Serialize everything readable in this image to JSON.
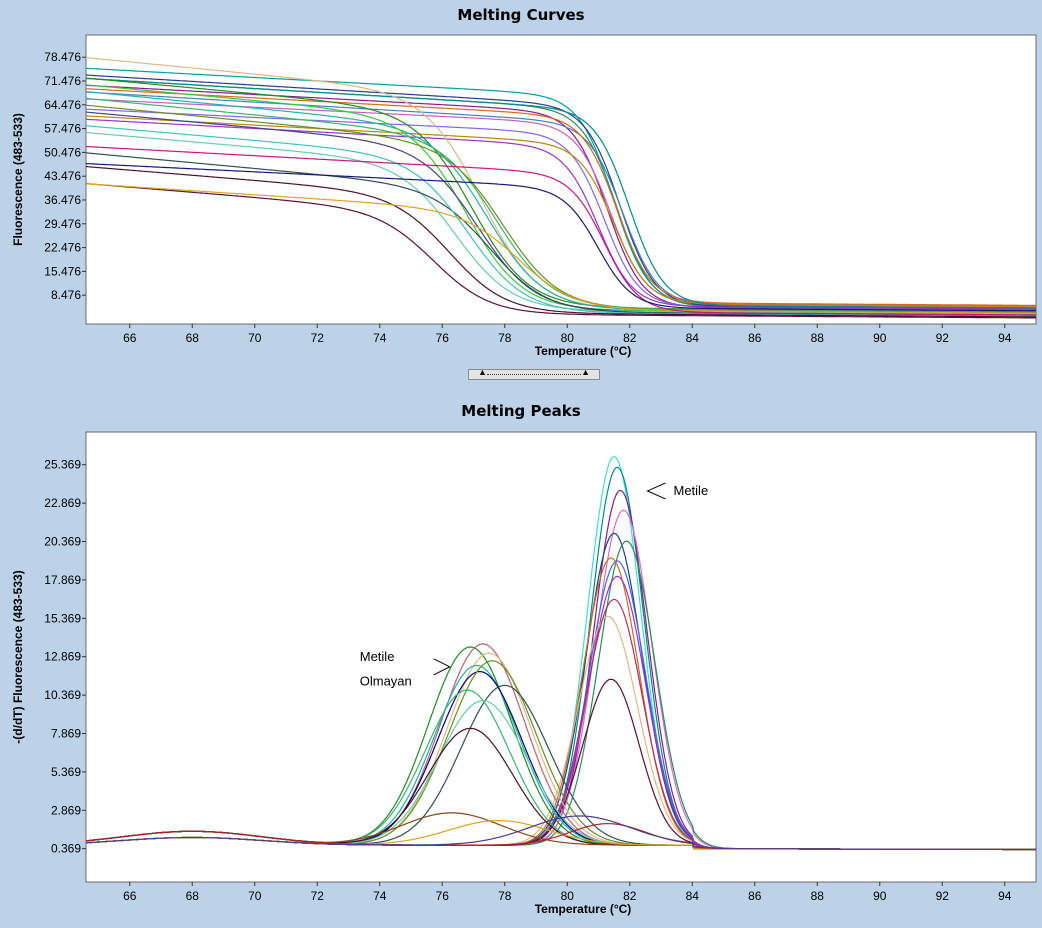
{
  "chart_data": [
    {
      "type": "line",
      "title": "Melting Curves",
      "xlabel": "Temperature (°C)",
      "ylabel": "Fluorescence (483-533)",
      "xlim": [
        64.6,
        95.0
      ],
      "ylim": [
        0.0,
        85.0
      ],
      "x_ticks": [
        66,
        68,
        70,
        72,
        74,
        76,
        78,
        80,
        82,
        84,
        86,
        88,
        90,
        92,
        94
      ],
      "y_ticks": [
        8.476,
        15.476,
        22.476,
        29.476,
        36.476,
        43.476,
        50.476,
        57.476,
        64.476,
        71.476,
        78.476
      ],
      "grid": false,
      "series": [
        {
          "color": "#2e8b57",
          "Tm": 81.6,
          "top": 72,
          "bottom": 5.0,
          "slope": 0.55
        },
        {
          "color": "#00a0a0",
          "Tm": 81.5,
          "top": 75,
          "bottom": 5.5,
          "slope": 0.5
        },
        {
          "color": "#1f3f8f",
          "Tm": 81.7,
          "top": 73,
          "bottom": 5.2,
          "slope": 0.55
        },
        {
          "color": "#8b1a8b",
          "Tm": 81.3,
          "top": 70,
          "bottom": 4.8,
          "slope": 0.5
        },
        {
          "color": "#c060c0",
          "Tm": 81.4,
          "top": 66,
          "bottom": 6.0,
          "slope": 0.45
        },
        {
          "color": "#4682b4",
          "Tm": 81.8,
          "top": 68,
          "bottom": 5.5,
          "slope": 0.55
        },
        {
          "color": "#d2691e",
          "Tm": 81.6,
          "top": 69,
          "bottom": 6.2,
          "slope": 0.5
        },
        {
          "color": "#7b68ee",
          "Tm": 81.2,
          "top": 63,
          "bottom": 5.0,
          "slope": 0.45
        },
        {
          "color": "#b8860b",
          "Tm": 81.5,
          "top": 61,
          "bottom": 5.8,
          "slope": 0.5
        },
        {
          "color": "#008b8b",
          "Tm": 82.0,
          "top": 72,
          "bottom": 5.4,
          "slope": 0.55
        },
        {
          "color": "#9932cc",
          "Tm": 81.0,
          "top": 60,
          "bottom": 5.1,
          "slope": 0.5
        },
        {
          "color": "#deb887",
          "Tm": 77.3,
          "top": 78,
          "bottom": 4.2,
          "slope": 0.9
        },
        {
          "color": "#228b22",
          "Tm": 77.0,
          "top": 72,
          "bottom": 4.5,
          "slope": 0.85
        },
        {
          "color": "#20b2aa",
          "Tm": 77.5,
          "top": 68,
          "bottom": 4.0,
          "slope": 0.9
        },
        {
          "color": "#32cd32",
          "Tm": 76.8,
          "top": 70,
          "bottom": 3.8,
          "slope": 0.85
        },
        {
          "color": "#3cb371",
          "Tm": 77.8,
          "top": 66,
          "bottom": 4.3,
          "slope": 0.9
        },
        {
          "color": "#483d8b",
          "Tm": 77.2,
          "top": 62,
          "bottom": 3.5,
          "slope": 0.85
        },
        {
          "color": "#6b8e23",
          "Tm": 78.0,
          "top": 64,
          "bottom": 4.1,
          "slope": 0.9
        },
        {
          "color": "#66cdaa",
          "Tm": 76.5,
          "top": 56,
          "bottom": 3.6,
          "slope": 0.8
        },
        {
          "color": "#2f4f4f",
          "Tm": 77.6,
          "top": 50,
          "bottom": 3.2,
          "slope": 0.85
        },
        {
          "color": "#40c0c0",
          "Tm": 76.9,
          "top": 58,
          "bottom": 3.0,
          "slope": 0.8
        },
        {
          "color": "#4b0f2b",
          "Tm": 76.3,
          "top": 46,
          "bottom": 2.8,
          "slope": 0.75
        },
        {
          "color": "#5a0f3a",
          "Tm": 75.8,
          "top": 41,
          "bottom": 2.5,
          "slope": 0.75
        },
        {
          "color": "#daa520",
          "Tm": 78.5,
          "top": 41,
          "bottom": 3.9,
          "slope": 0.6
        },
        {
          "color": "#c71585",
          "Tm": 81.2,
          "top": 52,
          "bottom": 3.4,
          "slope": 0.5
        },
        {
          "color": "#191970",
          "Tm": 81.0,
          "top": 47,
          "bottom": 4.6,
          "slope": 0.45
        }
      ]
    },
    {
      "type": "line",
      "title": "Melting Peaks",
      "xlabel": "Temperature (°C)",
      "ylabel": "-(d/dT) Fluorescence (483-533)",
      "xlim": [
        64.6,
        95.0
      ],
      "ylim": [
        -1.8,
        27.5
      ],
      "x_ticks": [
        66,
        68,
        70,
        72,
        74,
        76,
        78,
        80,
        82,
        84,
        86,
        88,
        90,
        92,
        94
      ],
      "y_ticks": [
        0.369,
        2.869,
        5.369,
        7.869,
        10.369,
        12.869,
        15.369,
        17.869,
        20.369,
        22.869,
        25.369
      ],
      "grid": false,
      "annotations": [
        {
          "text": "Metile",
          "x": 83.4,
          "y": 23.4
        },
        {
          "text": "Metile",
          "x": 74.0,
          "y": 12.6
        },
        {
          "text": "Olmayan",
          "x": 74.0,
          "y": 11.0
        }
      ],
      "series": [
        {
          "color": "#40e0d0",
          "peak": 81.5,
          "height": 25.3,
          "width": 0.85
        },
        {
          "color": "#008b8b",
          "peak": 81.6,
          "height": 24.6,
          "width": 0.85
        },
        {
          "color": "#8b1a8b",
          "peak": 81.7,
          "height": 23.1,
          "width": 0.85
        },
        {
          "color": "#d070d0",
          "peak": 81.8,
          "height": 21.8,
          "width": 0.9
        },
        {
          "color": "#1f3f8f",
          "peak": 81.5,
          "height": 20.3,
          "width": 0.9
        },
        {
          "color": "#2e8b57",
          "peak": 81.9,
          "height": 19.8,
          "width": 0.9
        },
        {
          "color": "#4169e1",
          "peak": 81.6,
          "height": 18.5,
          "width": 0.9
        },
        {
          "color": "#d2691e",
          "peak": 81.4,
          "height": 18.7,
          "width": 0.9
        },
        {
          "color": "#9932cc",
          "peak": 81.6,
          "height": 17.5,
          "width": 0.9
        },
        {
          "color": "#deb887",
          "peak": 81.3,
          "height": 14.9,
          "width": 0.95
        },
        {
          "color": "#b03060",
          "peak": 81.5,
          "height": 16.0,
          "width": 0.9
        },
        {
          "color": "#5a0f3a",
          "peak": 81.4,
          "height": 10.8,
          "width": 0.9
        },
        {
          "color": "#228b22",
          "peak": 76.9,
          "height": 12.9,
          "width": 1.35
        },
        {
          "color": "#c06070",
          "peak": 77.3,
          "height": 13.1,
          "width": 1.35
        },
        {
          "color": "#deb887",
          "peak": 77.5,
          "height": 12.5,
          "width": 1.35
        },
        {
          "color": "#20b2aa",
          "peak": 77.1,
          "height": 11.7,
          "width": 1.35
        },
        {
          "color": "#000080",
          "peak": 77.2,
          "height": 11.3,
          "width": 1.35
        },
        {
          "color": "#6b8e23",
          "peak": 77.6,
          "height": 12.0,
          "width": 1.4
        },
        {
          "color": "#2f4f4f",
          "peak": 78.0,
          "height": 10.4,
          "width": 1.4
        },
        {
          "color": "#3cb371",
          "peak": 76.8,
          "height": 10.1,
          "width": 1.35
        },
        {
          "color": "#66cdaa",
          "peak": 77.3,
          "height": 9.4,
          "width": 1.4
        },
        {
          "color": "#4b0f2b",
          "peak": 76.9,
          "height": 7.6,
          "width": 1.35
        },
        {
          "color": "#8b4513",
          "peak": 76.3,
          "height": 2.1,
          "width": 1.6
        },
        {
          "color": "#daa520",
          "peak": 77.8,
          "height": 1.6,
          "width": 1.6
        },
        {
          "color": "#b22222",
          "peak": 81.3,
          "height": 1.4,
          "width": 1.2
        },
        {
          "color": "#483d8b",
          "peak": 80.4,
          "height": 1.9,
          "width": 1.6
        }
      ]
    }
  ]
}
